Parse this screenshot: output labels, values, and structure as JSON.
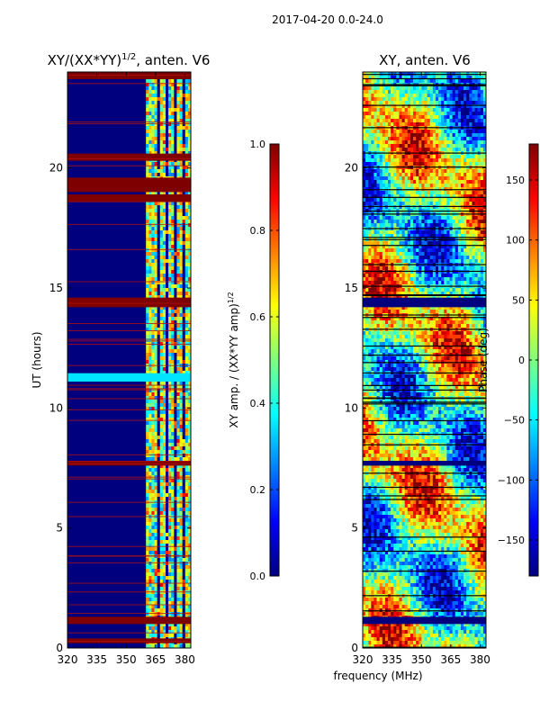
{
  "suptitle": "2017-04-20 0.0-24.0",
  "xlabel_common": "frequency (MHz)",
  "colors": {
    "jet": [
      "#00007f",
      "#0000ff",
      "#007fff",
      "#00ffff",
      "#7fff7f",
      "#ffff00",
      "#ff7f00",
      "#ff0000",
      "#7f0000"
    ]
  },
  "chart_data": [
    {
      "type": "heatmap",
      "title_main": "XY/(XX*YY)",
      "title_sup": "1/2",
      "title_tail": ", anten. V6",
      "ylabel": "UT (hours)",
      "xlabel": "",
      "xlim": [
        320,
        383
      ],
      "ylim": [
        0,
        24
      ],
      "xticks": [
        "320",
        "335",
        "350",
        "365",
        "380"
      ],
      "xtick_values": [
        320,
        335,
        350,
        365,
        380
      ],
      "yticks": [
        "0",
        "5",
        "10",
        "15",
        "20"
      ],
      "ytick_values": [
        0,
        5,
        10,
        15,
        20
      ],
      "colorbar": {
        "label_main": "XY amp. / (XX*YY amp)",
        "label_sup": "1/2",
        "range": [
          0.0,
          1.0
        ],
        "ticks": [
          "0.0",
          "0.2",
          "0.4",
          "0.6",
          "0.8",
          "1.0"
        ],
        "tick_values": [
          0.0,
          0.2,
          0.4,
          0.6,
          0.8,
          1.0
        ]
      }
    },
    {
      "type": "heatmap",
      "title_main": "XY, anten. V6",
      "ylabel": "",
      "xlabel": "frequency (MHz)",
      "xlim": [
        320,
        383
      ],
      "ylim": [
        0,
        24
      ],
      "xticks": [
        "320",
        "335",
        "350",
        "365",
        "380"
      ],
      "xtick_values": [
        320,
        335,
        350,
        365,
        380
      ],
      "yticks": [
        "0",
        "5",
        "10",
        "15",
        "20"
      ],
      "ytick_values": [
        0,
        5,
        10,
        15,
        20
      ],
      "colorbar": {
        "label_main": "Phase (deg)",
        "range": [
          -180,
          180
        ],
        "ticks": [
          "-150",
          "-100",
          "-50",
          "0",
          "50",
          "100",
          "150"
        ],
        "tick_values": [
          -150,
          -100,
          -50,
          0,
          50,
          100,
          150
        ]
      }
    }
  ]
}
